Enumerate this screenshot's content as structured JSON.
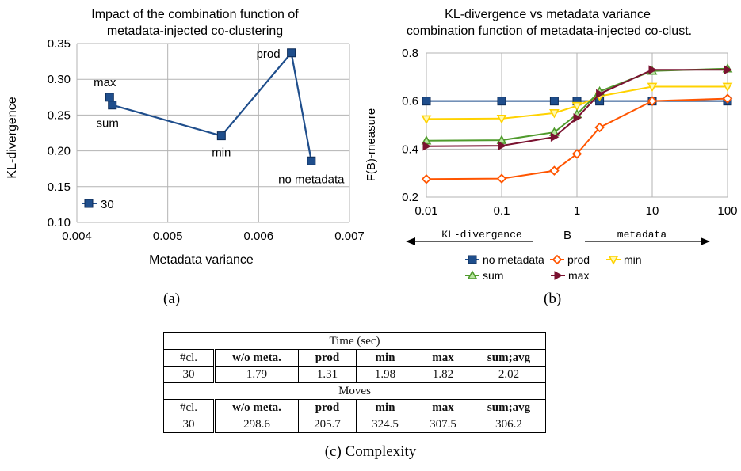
{
  "chart_data": [
    {
      "type": "scatter",
      "title": "Impact of the combination function of metadata-injected co-clustering",
      "title_lines": [
        "Impact of the combination function of",
        "metadata-injected co-clustering"
      ],
      "xlabel": "Metadata variance",
      "ylabel": "KL-divergence",
      "xlim": [
        0.004,
        0.007
      ],
      "ylim": [
        0.1,
        0.35
      ],
      "xticks": [
        "0.004",
        "0.005",
        "0.006",
        "0.007"
      ],
      "yticks": [
        "0.10",
        "0.15",
        "0.20",
        "0.25",
        "0.30",
        "0.35"
      ],
      "grid": true,
      "legend": {
        "position": "bottom-left",
        "entries": [
          "30"
        ]
      },
      "series": [
        {
          "name": "30",
          "color": "#1f4e8c",
          "marker": "square",
          "points": [
            {
              "label": "max",
              "x": 0.00436,
              "y": 0.275
            },
            {
              "label": "sum",
              "x": 0.00439,
              "y": 0.264
            },
            {
              "label": "min",
              "x": 0.00559,
              "y": 0.221
            },
            {
              "label": "prod",
              "x": 0.00636,
              "y": 0.337
            },
            {
              "label": "no metadata",
              "x": 0.00658,
              "y": 0.186
            }
          ]
        }
      ]
    },
    {
      "type": "line",
      "title": "KL-divergence vs metadata variance combination function of metadata-injected co-clust.",
      "title_lines": [
        "KL-divergence vs metadata variance",
        "combination function of metadata-injected co-clust."
      ],
      "xlabel": "B",
      "ylabel": "F(B)-measure",
      "xscale": "log",
      "xlim": [
        0.01,
        100
      ],
      "ylim": [
        0.2,
        0.8
      ],
      "xticks": [
        "0.01",
        "0.1",
        "1",
        "10",
        "100"
      ],
      "yticks": [
        "0.2",
        "0.4",
        "0.6",
        "0.8"
      ],
      "grid": true,
      "arrow_left_label": "KL-divergence",
      "arrow_right_label": "metadata",
      "x": [
        0.01,
        0.1,
        0.5,
        1,
        2,
        10,
        100
      ],
      "legend": {
        "position": "bottom"
      },
      "series": [
        {
          "name": "no metadata",
          "color": "#1f4e8c",
          "marker": "square",
          "values": [
            0.6,
            0.6,
            0.6,
            0.6,
            0.6,
            0.6,
            0.6
          ]
        },
        {
          "name": "prod",
          "color": "#ff5500",
          "marker": "diamond",
          "values": [
            0.275,
            0.277,
            0.31,
            0.38,
            0.49,
            0.6,
            0.61
          ]
        },
        {
          "name": "min",
          "color": "#ffd200",
          "marker": "triangle-down",
          "values": [
            0.525,
            0.527,
            0.55,
            0.58,
            0.62,
            0.66,
            0.66
          ]
        },
        {
          "name": "sum",
          "color": "#4f9a2c",
          "marker": "triangle-up",
          "values": [
            0.435,
            0.437,
            0.47,
            0.545,
            0.64,
            0.725,
            0.735
          ]
        },
        {
          "name": "max",
          "color": "#7a1230",
          "marker": "triangle-right",
          "values": [
            0.412,
            0.414,
            0.45,
            0.53,
            0.63,
            0.73,
            0.73
          ]
        }
      ]
    },
    {
      "type": "table",
      "sections": [
        {
          "title": "Time (sec)",
          "headers": [
            "#cl.",
            "w/o meta.",
            "prod",
            "min",
            "max",
            "sum;avg"
          ],
          "rows": [
            [
              "30",
              "1.79",
              "1.31",
              "1.98",
              "1.82",
              "2.02"
            ]
          ]
        },
        {
          "title": "Moves",
          "headers": [
            "#cl.",
            "w/o meta.",
            "prod",
            "min",
            "max",
            "sum;avg"
          ],
          "rows": [
            [
              "30",
              "298.6",
              "205.7",
              "324.5",
              "307.5",
              "306.2"
            ]
          ]
        }
      ]
    }
  ],
  "captions": {
    "a": "(a)",
    "b": "(b)",
    "c": "(c) Complexity"
  }
}
